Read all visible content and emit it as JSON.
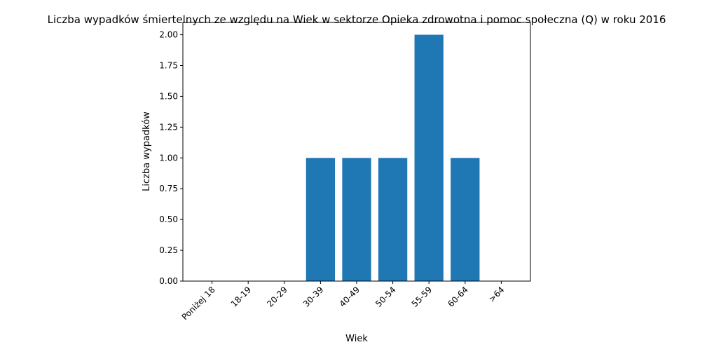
{
  "chart_data": {
    "type": "bar",
    "title": "Liczba wypadków śmiertelnych ze względu na Wiek w sektorze Opieka zdrowotna i pomoc społeczna  (Q)   w roku 2016",
    "xlabel": "Wiek",
    "ylabel": "Liczba wypadków",
    "categories": [
      "Poniżej 18",
      "18-19",
      "20-29",
      "30-39",
      "40-49",
      "50-54",
      "55-59",
      "60-64",
      ">64"
    ],
    "values": [
      0,
      0,
      0,
      1,
      1,
      1,
      2,
      1,
      0
    ],
    "ylim": [
      0,
      2.1
    ],
    "yticks": [
      "0.00",
      "0.25",
      "0.50",
      "0.75",
      "1.00",
      "1.25",
      "1.50",
      "1.75",
      "2.00"
    ],
    "bar_color": "#1f77b4",
    "grid": false,
    "legend": "none"
  }
}
